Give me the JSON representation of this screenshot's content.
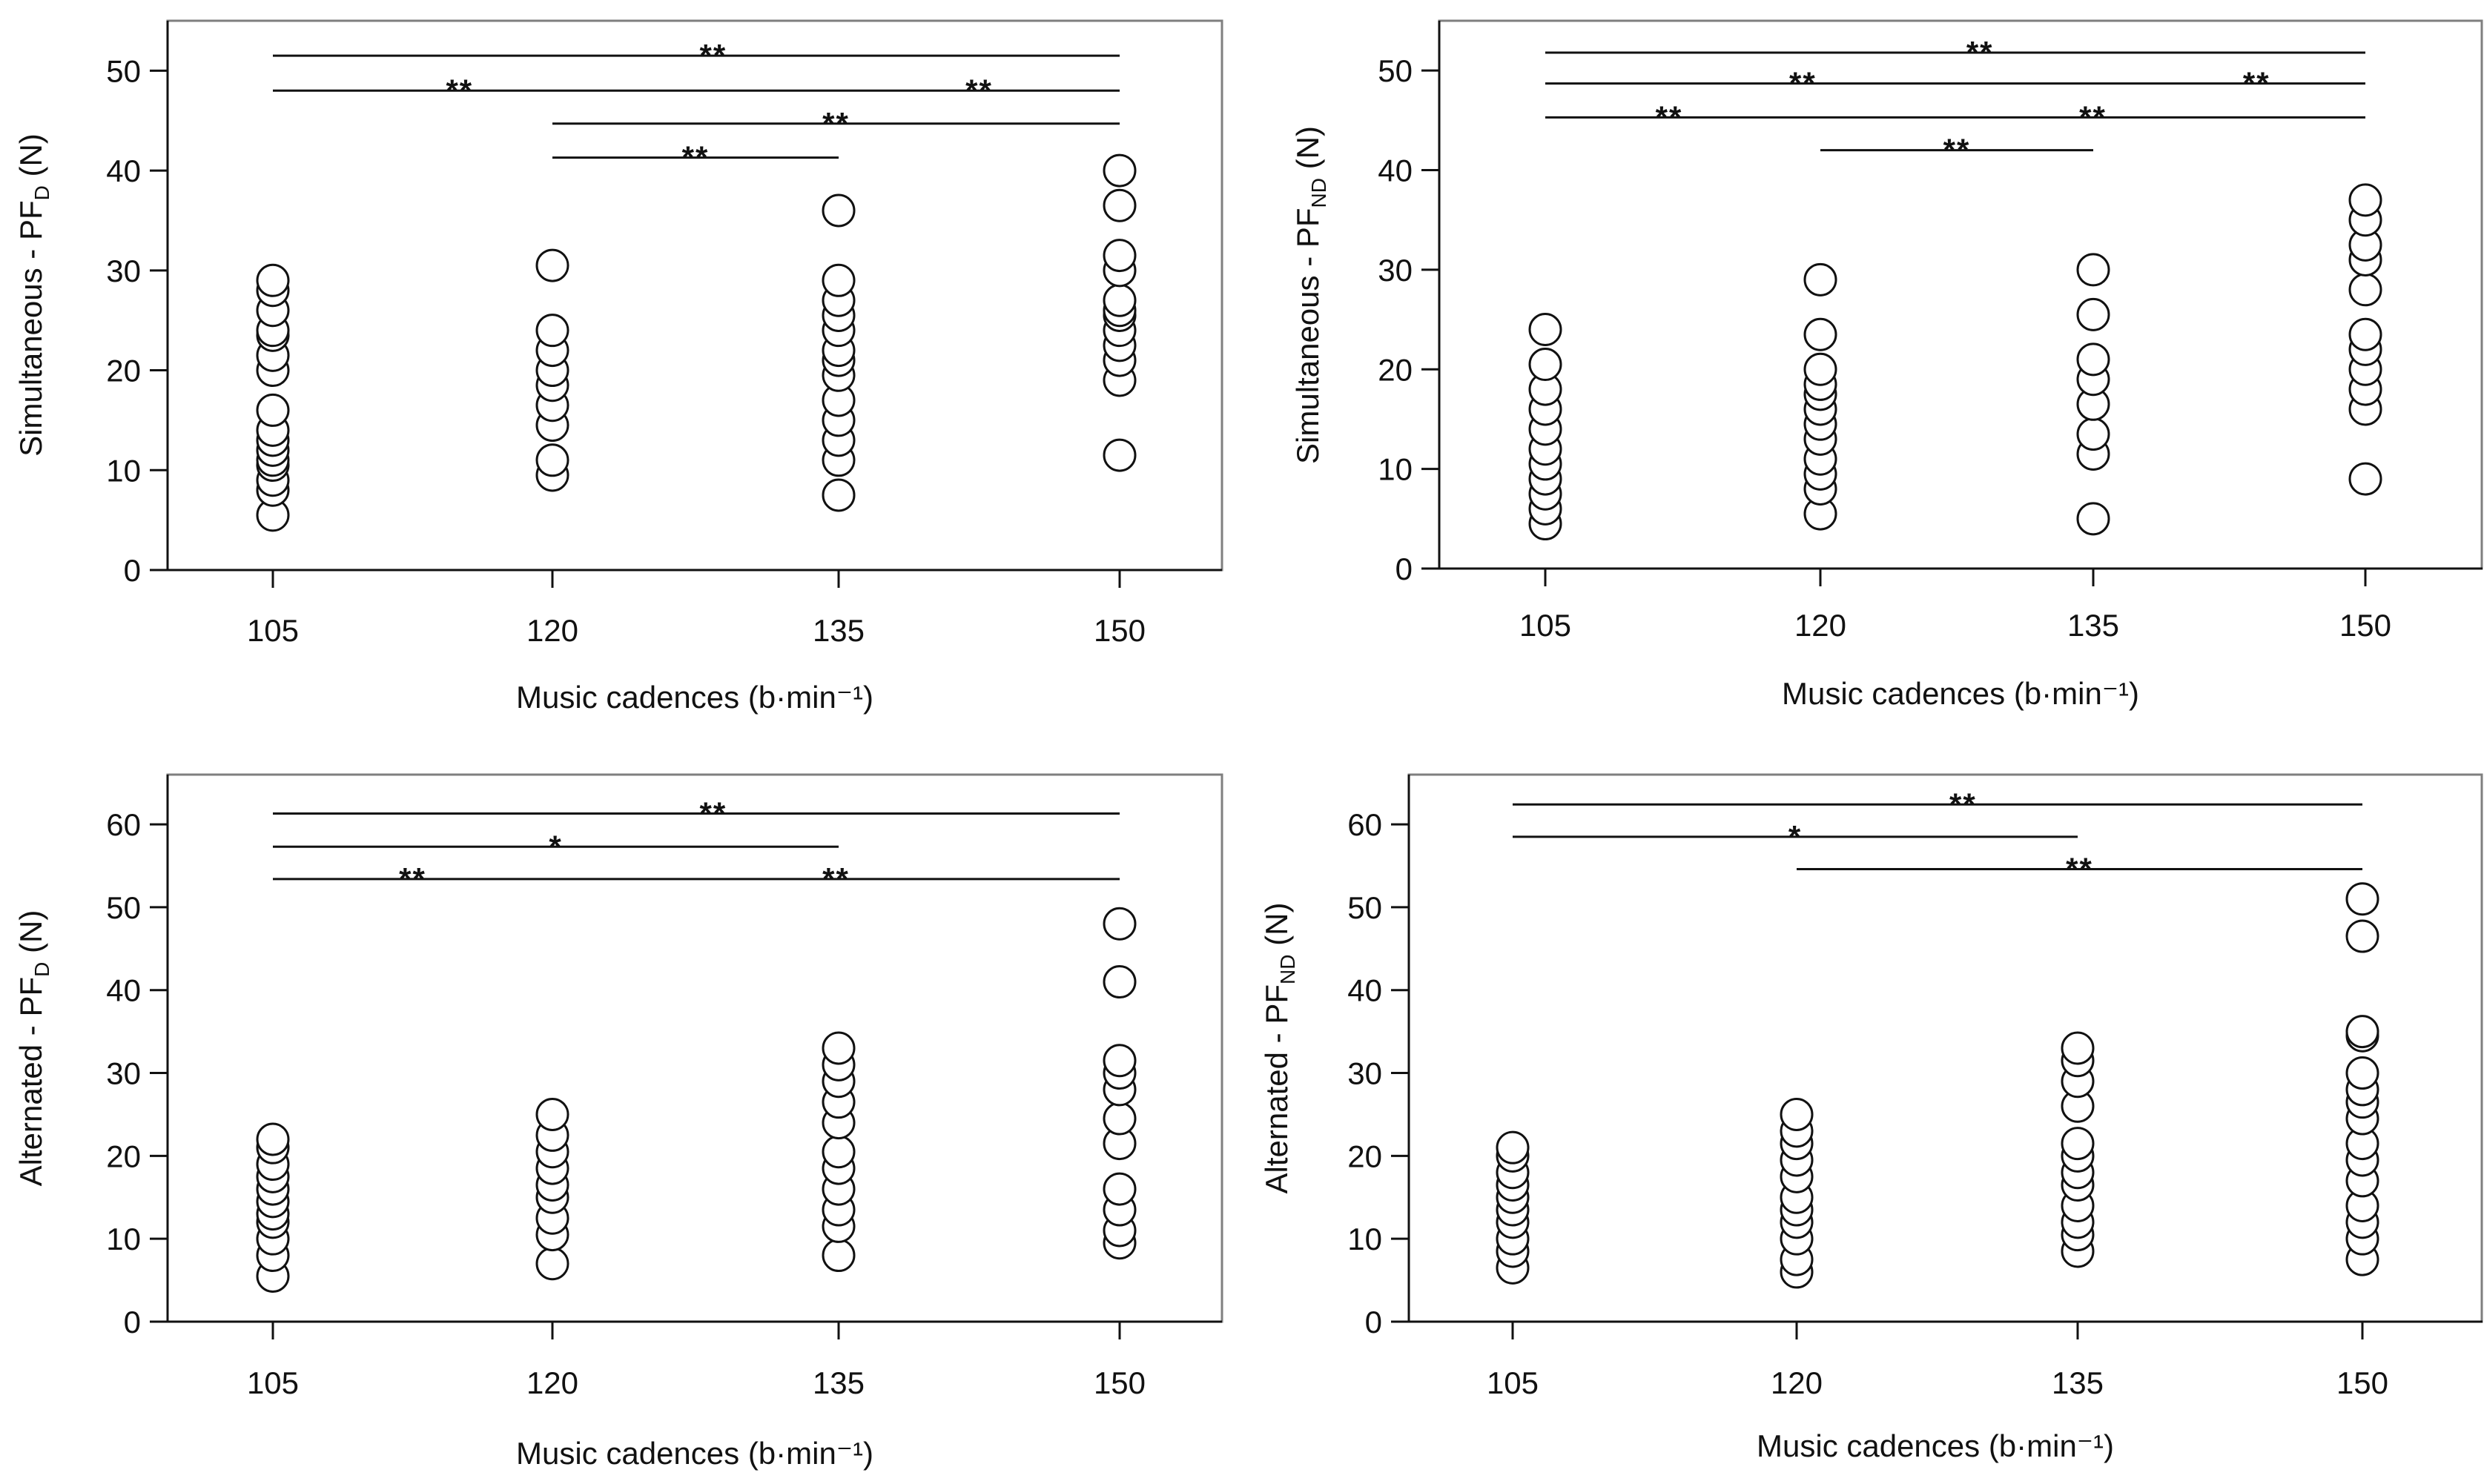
{
  "chart_data": [
    {
      "type": "scatter",
      "title": "",
      "xlabel": "Music cadences (b·min⁻¹)",
      "ylabel_main": "Simultaneous - PF",
      "ylabel_sub": "D",
      "ylabel_unit": " (N)",
      "categories": [
        "105",
        "120",
        "135",
        "150"
      ],
      "ylim": [
        0,
        55
      ],
      "yticks": [
        0,
        10,
        20,
        30,
        40,
        50
      ],
      "series": [
        {
          "category": "105",
          "values": [
            5.5,
            8,
            9,
            10.5,
            11,
            12,
            13,
            14,
            16,
            20,
            21.5,
            23.5,
            24,
            26,
            28,
            29
          ]
        },
        {
          "category": "120",
          "values": [
            9.5,
            11,
            14.5,
            16.5,
            18.5,
            20,
            22,
            24,
            30.5
          ]
        },
        {
          "category": "135",
          "values": [
            7.5,
            11,
            13,
            15,
            17,
            19.5,
            21,
            22,
            24,
            25.5,
            27,
            29,
            36
          ]
        },
        {
          "category": "150",
          "values": [
            11.5,
            19,
            21,
            22.5,
            24,
            25.5,
            26,
            27,
            30,
            31.5,
            36.5,
            40
          ]
        }
      ],
      "significance": [
        {
          "from": "105",
          "to": "150",
          "y": 51.5,
          "label": "**",
          "label_pos": 0.52
        },
        {
          "from": "105",
          "to": "135",
          "y": 48,
          "label": "**",
          "label_pos": 0.33
        },
        {
          "from": "135",
          "to": "150",
          "y": 48,
          "label": "**",
          "label_pos": 0.5
        },
        {
          "from": "120",
          "to": "150",
          "y": 44.7,
          "label": "**",
          "label_pos": 0.5
        },
        {
          "from": "120",
          "to": "135",
          "y": 41.3,
          "label": "**",
          "label_pos": 0.5
        }
      ]
    },
    {
      "type": "scatter",
      "title": "",
      "xlabel": "Music cadences (b·min⁻¹)",
      "ylabel_main": "Simultaneous - PF",
      "ylabel_sub": "ND",
      "ylabel_unit": " (N)",
      "categories": [
        "105",
        "120",
        "135",
        "150"
      ],
      "ylim": [
        0,
        55
      ],
      "yticks": [
        0,
        10,
        20,
        30,
        40,
        50
      ],
      "series": [
        {
          "category": "105",
          "values": [
            4.5,
            6,
            7.5,
            9,
            10.5,
            12,
            14,
            16,
            18,
            20.5,
            24
          ]
        },
        {
          "category": "120",
          "values": [
            5.5,
            8,
            9.5,
            11,
            13,
            14.5,
            16,
            17.5,
            18.5,
            20,
            23.5,
            29
          ]
        },
        {
          "category": "135",
          "values": [
            5,
            11.5,
            13.5,
            16.5,
            19,
            21,
            25.5,
            30
          ]
        },
        {
          "category": "150",
          "values": [
            9,
            16,
            18,
            20,
            22,
            23.5,
            28,
            31,
            32.5,
            35,
            37
          ]
        }
      ],
      "significance": [
        {
          "from": "105",
          "to": "150",
          "y": 51.8,
          "label": "**",
          "label_pos": 0.53
        },
        {
          "from": "105",
          "to": "135",
          "y": 48.7,
          "label": "**",
          "label_pos": 0.47
        },
        {
          "from": "135",
          "to": "150",
          "y": 48.7,
          "label": "**",
          "label_pos": 0.6
        },
        {
          "from": "105",
          "to": "120",
          "y": 45.3,
          "label": "**",
          "label_pos": 0.45
        },
        {
          "from": "120",
          "to": "150",
          "y": 45.3,
          "label": "**",
          "label_pos": 0.5
        },
        {
          "from": "120",
          "to": "135",
          "y": 42,
          "label": "**",
          "label_pos": 0.5
        }
      ]
    },
    {
      "type": "scatter",
      "title": "",
      "xlabel": "Music cadences (b·min⁻¹)",
      "ylabel_main": "Alternated - PF",
      "ylabel_sub": "D",
      "ylabel_unit": " (N)",
      "categories": [
        "105",
        "120",
        "135",
        "150"
      ],
      "ylim": [
        0,
        66
      ],
      "yticks": [
        0,
        10,
        20,
        30,
        40,
        50,
        60
      ],
      "series": [
        {
          "category": "105",
          "values": [
            5.5,
            8,
            10,
            12,
            13,
            14.5,
            16,
            17.5,
            19,
            21,
            22
          ]
        },
        {
          "category": "120",
          "values": [
            7,
            10.5,
            12.5,
            15,
            16.5,
            18.5,
            20.5,
            22.5,
            25
          ]
        },
        {
          "category": "135",
          "values": [
            8,
            11.5,
            13.5,
            16,
            18.5,
            20.5,
            24,
            26.5,
            29,
            31,
            33
          ]
        },
        {
          "category": "150",
          "values": [
            9.5,
            11,
            13.5,
            16,
            21.5,
            24.5,
            28,
            30,
            31.5,
            41,
            48
          ]
        }
      ],
      "significance": [
        {
          "from": "105",
          "to": "150",
          "y": 61.3,
          "label": "**",
          "label_pos": 0.52
        },
        {
          "from": "105",
          "to": "135",
          "y": 57.3,
          "label": "*",
          "label_pos": 0.5
        },
        {
          "from": "105",
          "to": "120",
          "y": 53.4,
          "label": "**",
          "label_pos": 0.5
        },
        {
          "from": "120",
          "to": "150",
          "y": 53.4,
          "label": "**",
          "label_pos": 0.5
        }
      ]
    },
    {
      "type": "scatter",
      "title": "",
      "xlabel": "Music cadences (b·min⁻¹)",
      "ylabel_main": "Alternated - PF",
      "ylabel_sub": "ND",
      "ylabel_unit": " (N)",
      "categories": [
        "105",
        "120",
        "135",
        "150"
      ],
      "ylim": [
        0,
        66
      ],
      "yticks": [
        0,
        10,
        20,
        30,
        40,
        50,
        60
      ],
      "series": [
        {
          "category": "105",
          "values": [
            6.5,
            8.5,
            10,
            12,
            13.5,
            15,
            16.5,
            18,
            20,
            21
          ]
        },
        {
          "category": "120",
          "values": [
            6,
            7.5,
            10,
            12,
            13.5,
            15,
            17.5,
            19.5,
            21.5,
            23,
            25
          ]
        },
        {
          "category": "135",
          "values": [
            8.5,
            10.5,
            12,
            14,
            16.5,
            18,
            20,
            21.5,
            26,
            29,
            31.5,
            33
          ]
        },
        {
          "category": "150",
          "values": [
            7.5,
            10,
            12,
            14,
            17,
            19.5,
            21.5,
            24.5,
            26.5,
            28,
            30,
            34.5,
            35,
            46.5,
            51
          ]
        }
      ],
      "significance": [
        {
          "from": "105",
          "to": "150",
          "y": 62.4,
          "label": "**",
          "label_pos": 0.53
        },
        {
          "from": "105",
          "to": "135",
          "y": 58.5,
          "label": "*",
          "label_pos": 0.5
        },
        {
          "from": "120",
          "to": "150",
          "y": 54.6,
          "label": "**",
          "label_pos": 0.5
        }
      ]
    }
  ]
}
